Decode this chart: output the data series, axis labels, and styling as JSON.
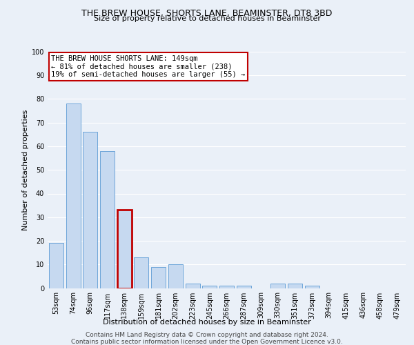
{
  "title1": "THE BREW HOUSE, SHORTS LANE, BEAMINSTER, DT8 3BD",
  "title2": "Size of property relative to detached houses in Beaminster",
  "xlabel": "Distribution of detached houses by size in Beaminster",
  "ylabel": "Number of detached properties",
  "categories": [
    "53sqm",
    "74sqm",
    "96sqm",
    "117sqm",
    "138sqm",
    "159sqm",
    "181sqm",
    "202sqm",
    "223sqm",
    "245sqm",
    "266sqm",
    "287sqm",
    "309sqm",
    "330sqm",
    "351sqm",
    "373sqm",
    "394sqm",
    "415sqm",
    "436sqm",
    "458sqm",
    "479sqm"
  ],
  "values": [
    19,
    78,
    66,
    58,
    33,
    13,
    9,
    10,
    2,
    1,
    1,
    1,
    0,
    2,
    2,
    1,
    0,
    0,
    0,
    0,
    0
  ],
  "bar_color": "#c6d9f0",
  "bar_edge_color": "#5b9bd5",
  "highlight_bar_index": 4,
  "highlight_edge_color": "#c00000",
  "annotation_line1": "THE BREW HOUSE SHORTS LANE: 149sqm",
  "annotation_line2": "← 81% of detached houses are smaller (238)",
  "annotation_line3": "19% of semi-detached houses are larger (55) →",
  "annotation_box_color": "#c00000",
  "footnote1": "Contains HM Land Registry data © Crown copyright and database right 2024.",
  "footnote2": "Contains public sector information licensed under the Open Government Licence v3.0.",
  "ylim": [
    0,
    100
  ],
  "yticks": [
    0,
    10,
    20,
    30,
    40,
    50,
    60,
    70,
    80,
    90,
    100
  ],
  "bg_color": "#eaf0f8",
  "plot_bg_color": "#eaf0f8",
  "grid_color": "#ffffff",
  "title1_fontsize": 9,
  "title2_fontsize": 8,
  "ylabel_fontsize": 8,
  "xlabel_fontsize": 8,
  "tick_fontsize": 7,
  "annot_fontsize": 7.5,
  "footnote_fontsize": 6.5
}
